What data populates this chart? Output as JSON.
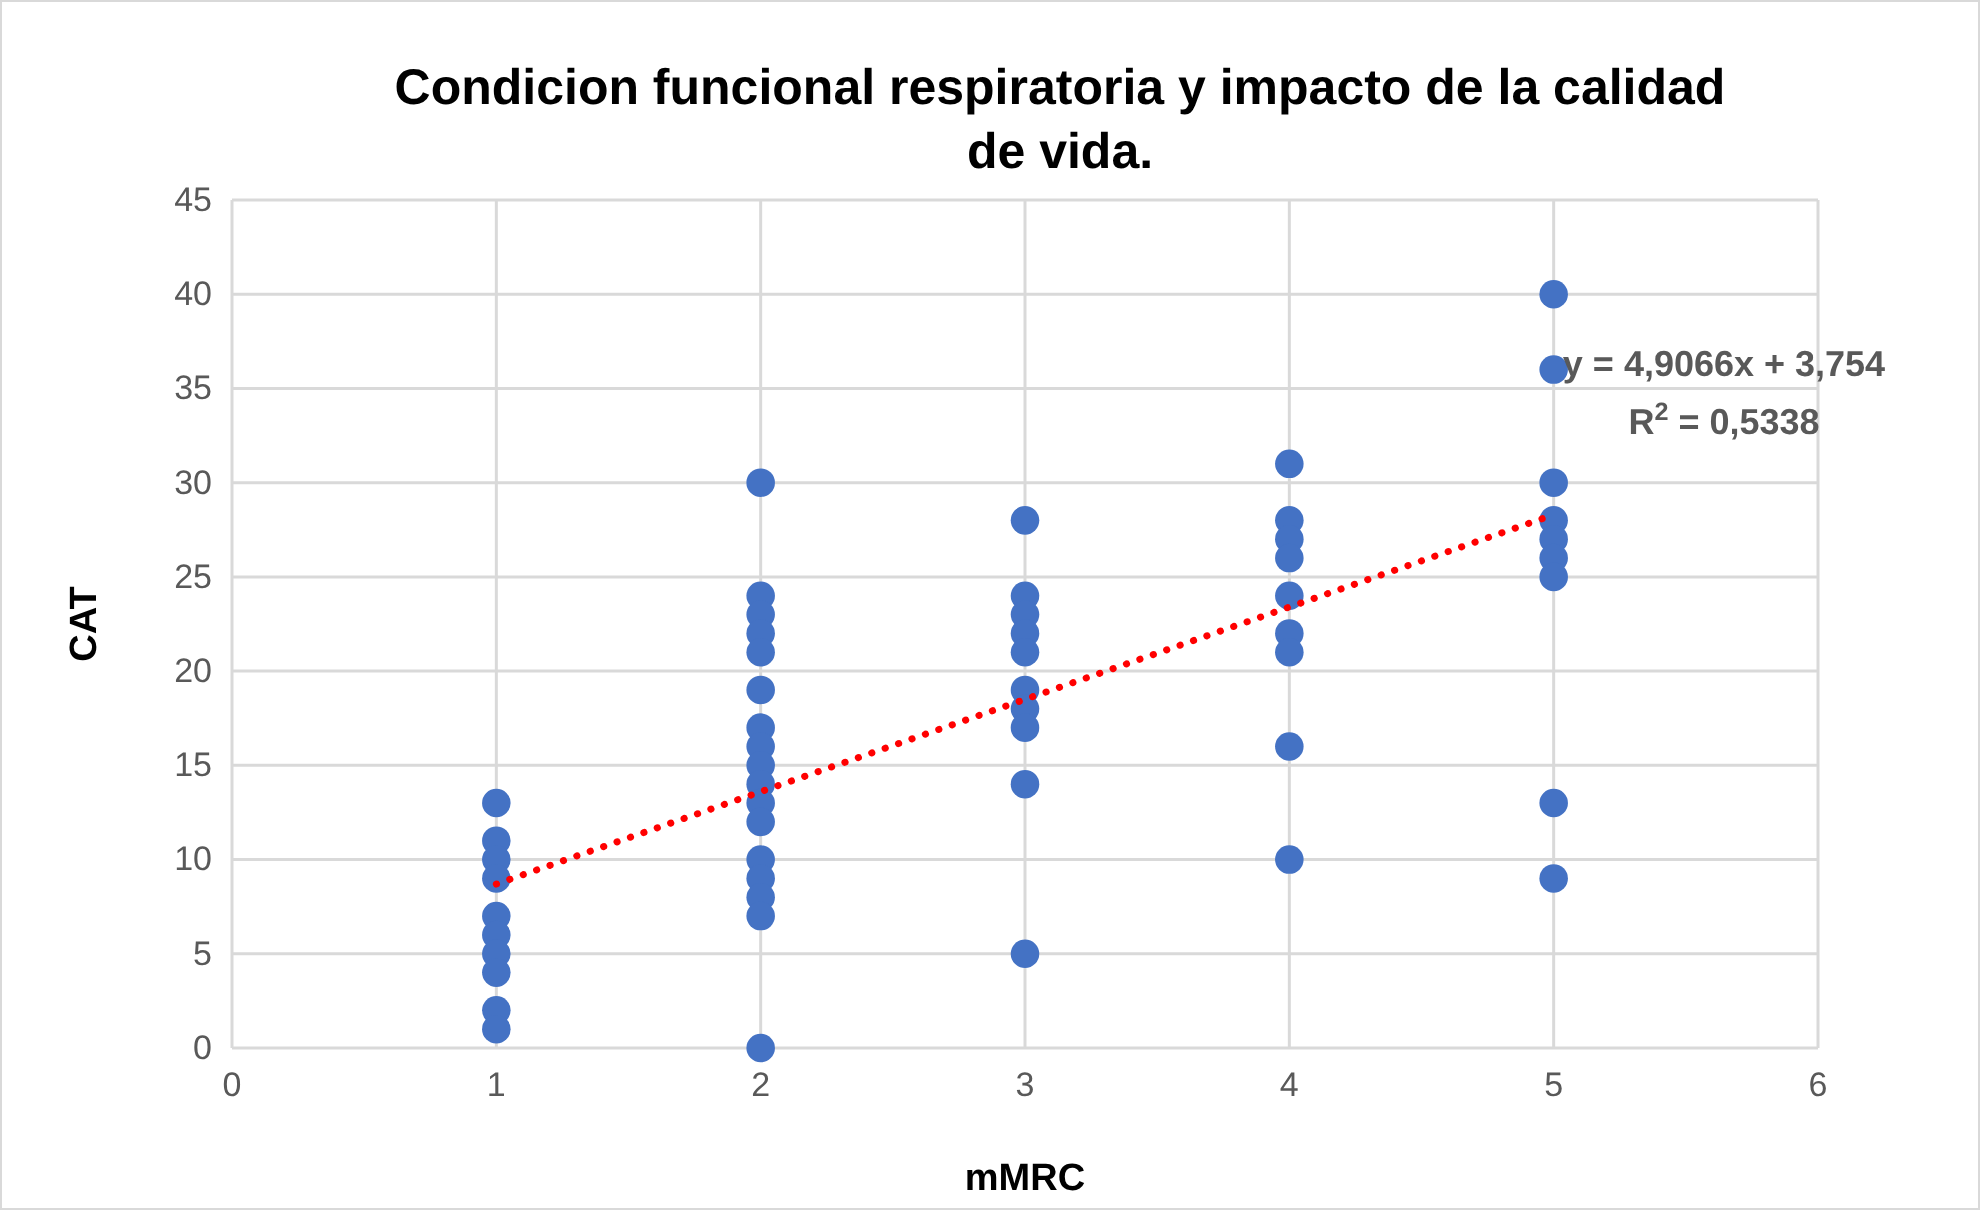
{
  "chart_data": {
    "type": "scatter",
    "title": "Condicion funcional respiratoria y impacto de la calidad de vida.",
    "xlabel": "mMRC",
    "ylabel": "CAT",
    "xlim": [
      0,
      6
    ],
    "xticks": [
      0,
      1,
      2,
      3,
      4,
      5,
      6
    ],
    "ylim": [
      0,
      45
    ],
    "yticks": [
      0,
      5,
      10,
      15,
      20,
      25,
      30,
      35,
      40,
      45
    ],
    "grid": true,
    "series": [
      {
        "color": "#4472c4",
        "marker": "circle",
        "x": [
          1,
          1,
          1,
          1,
          1,
          1,
          1,
          1,
          1,
          1,
          2,
          2,
          2,
          2,
          2,
          2,
          2,
          2,
          2,
          2,
          2,
          2,
          2,
          2,
          2,
          2,
          2,
          3,
          3,
          3,
          3,
          3,
          3,
          3,
          3,
          3,
          3,
          4,
          4,
          4,
          4,
          4,
          4,
          4,
          4,
          4,
          5,
          5,
          5,
          5,
          5,
          5,
          5,
          5,
          5
        ],
        "values": [
          13,
          11,
          10,
          9,
          7,
          6,
          5,
          4,
          2,
          1,
          30,
          24,
          23,
          22,
          21,
          19,
          17,
          16,
          15,
          14,
          13,
          12,
          10,
          9,
          8,
          7,
          0,
          28,
          24,
          23,
          22,
          21,
          19,
          18,
          17,
          14,
          5,
          31,
          28,
          27,
          26,
          24,
          22,
          21,
          16,
          10,
          40,
          36,
          30,
          28,
          27,
          26,
          25,
          13,
          9
        ]
      },
      {
        "type": "line",
        "color": "#ff0000",
        "line_style": "dotted",
        "marker": "none",
        "x": [
          1,
          5
        ],
        "values": [
          8.7,
          28.3
        ]
      }
    ],
    "annotations": [
      "y = 4,9066x + 3,754",
      "R$^{2}$ = 0,5338"
    ]
  }
}
